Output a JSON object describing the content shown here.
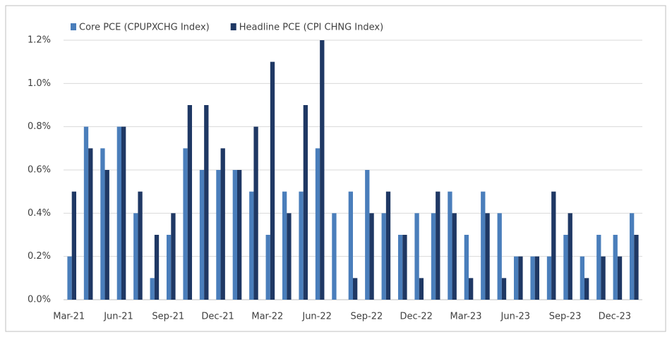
{
  "chart_data": {
    "type": "bar",
    "categories": [
      "Mar-21",
      null,
      null,
      "Jun-21",
      null,
      null,
      "Sep-21",
      null,
      null,
      "Dec-21",
      null,
      null,
      "Mar-22",
      null,
      null,
      "Jun-22",
      null,
      null,
      "Sep-22",
      null,
      null,
      "Dec-22",
      null,
      null,
      "Mar-23",
      null,
      null,
      "Jun-23",
      null,
      null,
      "Sep-23",
      null,
      null,
      "Dec-23",
      null
    ],
    "series": [
      {
        "name": "Core PCE (CPUPXCHG Index)",
        "color": "#4a7ebb",
        "values": [
          0.2,
          0.8,
          0.7,
          0.8,
          0.4,
          0.1,
          0.3,
          0.7,
          0.6,
          0.6,
          0.6,
          0.5,
          0.3,
          0.5,
          0.5,
          0.7,
          0.4,
          0.5,
          0.6,
          0.4,
          0.3,
          0.4,
          0.4,
          0.5,
          0.3,
          0.5,
          0.4,
          0.2,
          0.2,
          0.2,
          0.3,
          0.2,
          0.3,
          0.3,
          0.4
        ]
      },
      {
        "name": "Headline PCE (CPI CHNG Index)",
        "color": "#1f3864",
        "values": [
          0.5,
          0.7,
          0.6,
          0.8,
          0.5,
          0.3,
          0.4,
          0.9,
          0.9,
          0.7,
          0.6,
          0.8,
          1.1,
          0.4,
          0.9,
          1.2,
          0.0,
          0.1,
          0.4,
          0.5,
          0.3,
          0.1,
          0.5,
          0.4,
          0.1,
          0.4,
          0.1,
          0.2,
          0.2,
          0.5,
          0.4,
          0.1,
          0.2,
          0.2,
          0.3
        ]
      }
    ],
    "ylim": [
      0,
      1.2
    ],
    "yticks": [
      {
        "value": 0,
        "label": "0.0%"
      },
      {
        "value": 0.2,
        "label": "0.2%"
      },
      {
        "value": 0.4,
        "label": "0.4%"
      },
      {
        "value": 0.6,
        "label": "0.6%"
      },
      {
        "value": 0.8,
        "label": "0.8%"
      },
      {
        "value": 1.0,
        "label": "1.0%"
      },
      {
        "value": 1.2,
        "label": "1.2%"
      }
    ],
    "grid": true
  }
}
